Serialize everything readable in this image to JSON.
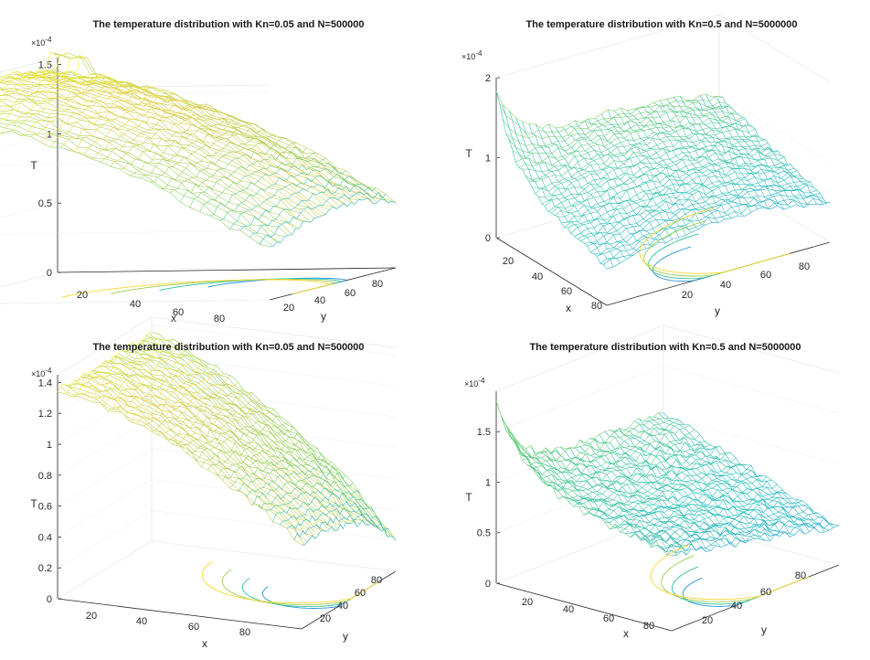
{
  "chart_data": [
    {
      "type": "surface",
      "title": "The temperature distribution with Kn=0.05 and N=500000",
      "xlabel": "x",
      "ylabel": "y",
      "zlabel": "T",
      "z_multiplier": "×10^-4",
      "x_ticks": [
        "20",
        "40",
        "60",
        "80"
      ],
      "y_ticks": [
        "20",
        "40",
        "60",
        "80"
      ],
      "z_ticks": [
        "0",
        "0.5",
        "1",
        "1.5"
      ],
      "xlim": [
        1,
        90
      ],
      "ylim": [
        1,
        90
      ],
      "zlim": [
        0,
        1.55
      ],
      "contour_projection": true,
      "colormap": [
        "#3e26a8",
        "#2e84e6",
        "#13bdb9",
        "#7fcf56",
        "#f6c938",
        "#f9fb0e"
      ]
    },
    {
      "type": "surface",
      "title": "The temperature distribution with Kn=0.5 and N=5000000",
      "xlabel": "x",
      "ylabel": "y",
      "zlabel": "T",
      "z_multiplier": "×10^-4",
      "x_ticks": [
        "20",
        "40",
        "60",
        "80"
      ],
      "y_ticks": [
        "20",
        "40",
        "60",
        "80"
      ],
      "z_ticks": [
        "0",
        "1",
        "2"
      ],
      "xlim": [
        1,
        90
      ],
      "ylim": [
        1,
        90
      ],
      "zlim": [
        0,
        2
      ],
      "contour_projection": true,
      "colormap": [
        "#3e26a8",
        "#2e84e6",
        "#13bdb9",
        "#7fcf56",
        "#f6c938",
        "#f9fb0e"
      ]
    },
    {
      "type": "surface",
      "title": "The temperature distribution with Kn=0.05 and N=500000",
      "xlabel": "x",
      "ylabel": "y",
      "zlabel": "T",
      "z_multiplier": "×10^-4",
      "x_ticks": [
        "20",
        "40",
        "60",
        "80"
      ],
      "y_ticks": [
        "20",
        "40",
        "60",
        "80"
      ],
      "z_ticks": [
        "0",
        "0.2",
        "0.4",
        "0.6",
        "0.8",
        "1",
        "1.2",
        "1.4"
      ],
      "xlim": [
        1,
        90
      ],
      "ylim": [
        1,
        90
      ],
      "zlim": [
        0,
        1.45
      ],
      "contour_projection": true,
      "colormap": [
        "#3e26a8",
        "#2e84e6",
        "#13bdb9",
        "#7fcf56",
        "#f6c938",
        "#f9fb0e"
      ]
    },
    {
      "type": "surface",
      "title": "The temperature distribution with Kn=0.5 and N=5000000",
      "xlabel": "x",
      "ylabel": "y",
      "zlabel": "T",
      "z_multiplier": "×10^-4",
      "x_ticks": [
        "20",
        "40",
        "60",
        "80"
      ],
      "y_ticks": [
        "20",
        "40",
        "60",
        "80"
      ],
      "z_ticks": [
        "0",
        "0.5",
        "1",
        "1.5"
      ],
      "xlim": [
        1,
        90
      ],
      "ylim": [
        1,
        90
      ],
      "zlim": [
        0,
        1.9
      ],
      "contour_projection": true,
      "colormap": [
        "#3e26a8",
        "#2e84e6",
        "#13bdb9",
        "#7fcf56",
        "#f6c938",
        "#f9fb0e"
      ]
    }
  ]
}
